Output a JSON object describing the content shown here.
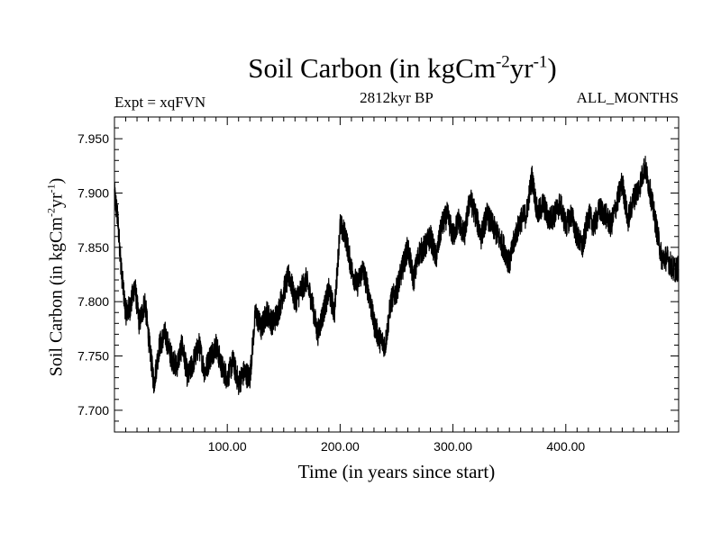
{
  "chart_data": {
    "type": "line",
    "title_main": "Soil Carbon (in kgCm",
    "title_exp1": "-2",
    "title_mid": "yr",
    "title_exp2": "-1",
    "title_end": ")",
    "subtitle_left": "Expt = xqFVN",
    "subtitle_center": "2812kyr BP",
    "subtitle_right": "ALL_MONTHS",
    "xlabel": "Time (in years since start)",
    "ylabel_main": "Soil Carbon (in kgCm",
    "ylabel_exp1": "-2",
    "ylabel_mid": "yr",
    "ylabel_exp2": "-1",
    "ylabel_end": ")",
    "xlim": [
      0,
      500
    ],
    "ylim": [
      7.68,
      7.97
    ],
    "x_ticks": [
      {
        "value": 100,
        "label": "100.00"
      },
      {
        "value": 200,
        "label": "200.00"
      },
      {
        "value": 300,
        "label": "300.00"
      },
      {
        "value": 400,
        "label": "400.00"
      }
    ],
    "y_ticks": [
      {
        "value": 7.7,
        "label": "7.700"
      },
      {
        "value": 7.75,
        "label": "7.750"
      },
      {
        "value": 7.8,
        "label": "7.800"
      },
      {
        "value": 7.85,
        "label": "7.850"
      },
      {
        "value": 7.9,
        "label": "7.900"
      },
      {
        "value": 7.95,
        "label": "7.950"
      }
    ],
    "series": [
      {
        "name": "Soil Carbon",
        "color": "#000000",
        "x": [
          0,
          3,
          6,
          10,
          14,
          18,
          22,
          27,
          31,
          35,
          40,
          45,
          50,
          55,
          60,
          65,
          70,
          75,
          80,
          85,
          90,
          95,
          100,
          105,
          110,
          115,
          120,
          125,
          130,
          135,
          140,
          145,
          150,
          155,
          160,
          165,
          170,
          175,
          180,
          185,
          190,
          195,
          200,
          205,
          210,
          215,
          220,
          225,
          230,
          235,
          240,
          245,
          250,
          255,
          260,
          265,
          270,
          275,
          280,
          285,
          290,
          295,
          300,
          305,
          310,
          315,
          320,
          325,
          330,
          335,
          340,
          345,
          350,
          355,
          360,
          365,
          370,
          375,
          380,
          385,
          390,
          395,
          400,
          405,
          410,
          415,
          420,
          425,
          430,
          435,
          440,
          445,
          450,
          455,
          460,
          465,
          470,
          475,
          480,
          485,
          490,
          495,
          500
        ],
        "values": [
          7.9,
          7.875,
          7.83,
          7.79,
          7.795,
          7.815,
          7.78,
          7.8,
          7.76,
          7.725,
          7.76,
          7.77,
          7.75,
          7.74,
          7.76,
          7.73,
          7.745,
          7.76,
          7.735,
          7.75,
          7.76,
          7.74,
          7.73,
          7.745,
          7.725,
          7.735,
          7.73,
          7.79,
          7.775,
          7.79,
          7.78,
          7.79,
          7.81,
          7.825,
          7.8,
          7.81,
          7.82,
          7.8,
          7.77,
          7.79,
          7.81,
          7.79,
          7.87,
          7.86,
          7.83,
          7.815,
          7.83,
          7.81,
          7.78,
          7.765,
          7.76,
          7.8,
          7.81,
          7.83,
          7.85,
          7.82,
          7.845,
          7.85,
          7.86,
          7.84,
          7.87,
          7.88,
          7.86,
          7.875,
          7.86,
          7.895,
          7.88,
          7.86,
          7.88,
          7.87,
          7.86,
          7.85,
          7.835,
          7.86,
          7.875,
          7.88,
          7.915,
          7.88,
          7.89,
          7.875,
          7.88,
          7.89,
          7.87,
          7.88,
          7.86,
          7.85,
          7.88,
          7.87,
          7.885,
          7.88,
          7.87,
          7.89,
          7.91,
          7.875,
          7.895,
          7.905,
          7.925,
          7.9,
          7.87,
          7.84,
          7.84,
          7.83,
          7.83
        ]
      }
    ]
  }
}
